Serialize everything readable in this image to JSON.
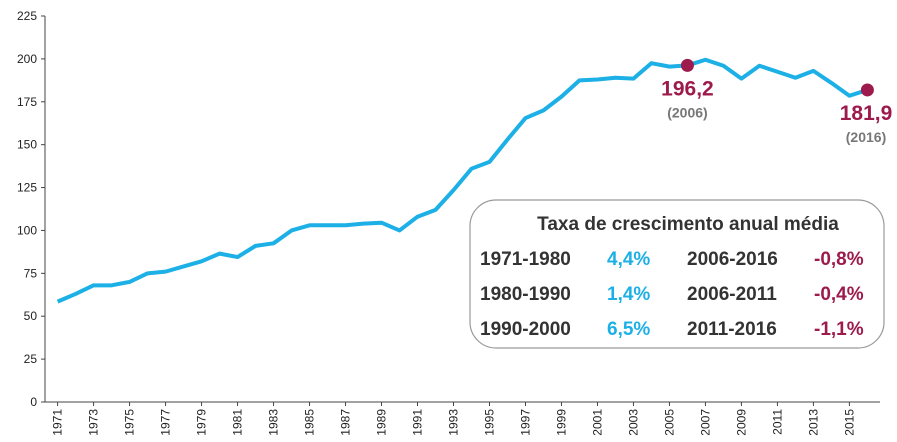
{
  "chart_data": {
    "type": "line",
    "x": [
      1971,
      1972,
      1973,
      1974,
      1975,
      1976,
      1977,
      1978,
      1979,
      1980,
      1981,
      1982,
      1983,
      1984,
      1985,
      1986,
      1987,
      1988,
      1989,
      1990,
      1991,
      1992,
      1993,
      1994,
      1995,
      1996,
      1997,
      1998,
      1999,
      2000,
      2001,
      2002,
      2003,
      2004,
      2005,
      2006,
      2007,
      2008,
      2009,
      2010,
      2011,
      2012,
      2013,
      2014,
      2015,
      2016
    ],
    "series": [
      {
        "color": "#1cb0e6",
        "values": [
          58.5,
          63,
          68,
          68,
          70,
          75,
          76,
          79,
          82,
          86.5,
          84.5,
          91,
          92.5,
          100,
          103,
          103,
          103,
          104,
          104.5,
          100,
          108,
          112,
          123.5,
          136,
          140,
          153,
          165.5,
          170,
          178,
          187.5,
          188,
          189,
          188.5,
          197.5,
          195.5,
          196.2,
          199.5,
          196,
          188.5,
          196,
          192.5,
          189,
          193,
          186,
          178.5,
          181.9
        ]
      }
    ],
    "xlim": [
      1970.3,
      2016.7
    ],
    "xticks": [
      1971,
      1973,
      1975,
      1977,
      1979,
      1981,
      1983,
      1985,
      1987,
      1989,
      1991,
      1993,
      1995,
      1997,
      1999,
      2001,
      2003,
      2005,
      2007,
      2009,
      2011,
      2013,
      2015
    ],
    "ylim": [
      0,
      225
    ],
    "yticks": [
      0,
      25,
      50,
      75,
      100,
      125,
      150,
      175,
      200,
      225
    ],
    "annotations": [
      {
        "x": 2006,
        "label": "196,2",
        "note": "(2006)"
      },
      {
        "x": 2016,
        "label": "181,9",
        "note": "(2016)"
      }
    ],
    "marker_color": "#9c1b4c"
  },
  "box": {
    "title": "Taxa de crescimento anual média",
    "rows": [
      [
        "1971-1980",
        "4,4%",
        "2006-2016",
        "-0,8%"
      ],
      [
        "1980-1990",
        "1,4%",
        "2006-2011",
        "-0,4%"
      ],
      [
        "1990-2000",
        "6,5%",
        "2011-2016",
        "-1,1%"
      ]
    ]
  }
}
